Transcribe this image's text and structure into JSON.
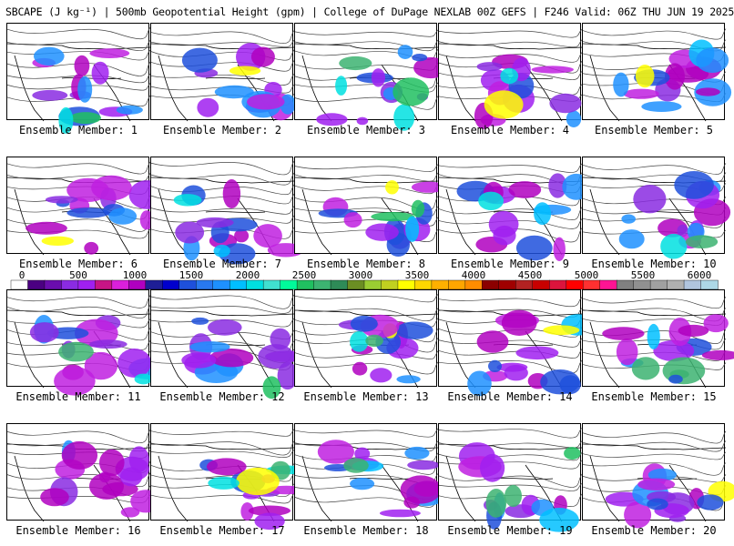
{
  "title": "SBCAPE (J kg⁻¹) | 500mb Geopotential Height (gpm) | College of DuPage NEXLAB 00Z GEFS | F246 Valid: 06Z THU JUN 19 2025",
  "member_label_prefix": "Ensemble Member: ",
  "members": [
    1,
    2,
    3,
    4,
    5,
    6,
    7,
    8,
    9,
    10,
    11,
    12,
    13,
    14,
    15,
    16,
    17,
    18,
    19,
    20
  ],
  "colorbar": {
    "min": 0,
    "max": 6000,
    "labels": [
      "0",
      "500",
      "1000",
      "1500",
      "2000",
      "2500",
      "3000",
      "3500",
      "4000",
      "4500",
      "5000",
      "5500",
      "6000"
    ],
    "colors": [
      "#ffffff",
      "#4b0082",
      "#6a0dad",
      "#8a2be2",
      "#a020f0",
      "#c71585",
      "#da20da",
      "#b000c0",
      "#1e1e96",
      "#0000cd",
      "#1e50dc",
      "#2878f0",
      "#1e90ff",
      "#00bfff",
      "#00e0e0",
      "#40e0d0",
      "#00fa9a",
      "#20c060",
      "#3cb371",
      "#2e8b57",
      "#6b8e23",
      "#9acd32",
      "#c0d020",
      "#ffff00",
      "#ffd700",
      "#ffb000",
      "#ffa500",
      "#ff8c00",
      "#8b0000",
      "#a00000",
      "#b22222",
      "#c80000",
      "#dc143c",
      "#ff0000",
      "#ff3030",
      "#ff1493",
      "#808080",
      "#909090",
      "#a0a0a0",
      "#b0b0b0",
      "#b0c4de",
      "#add8e6"
    ]
  }
}
